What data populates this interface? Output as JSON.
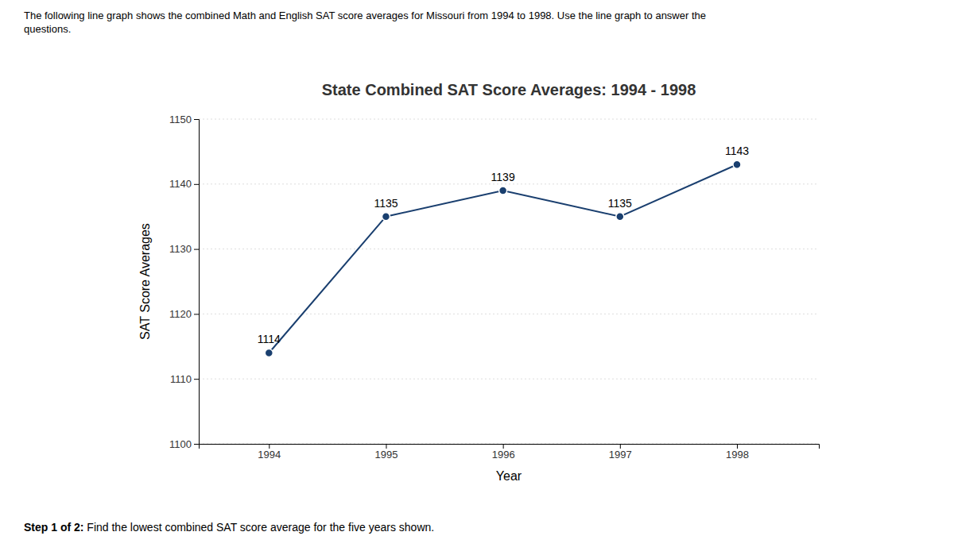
{
  "chart_data": {
    "type": "line",
    "title": "State Combined SAT Score Averages: 1994 - 1998",
    "xlabel": "Year",
    "ylabel": "SAT Score Averages",
    "annotations": [
      "The following line graph shows the combined Math and English SAT score averages for Missouri from 1994 to 1998. Use the line graph to answer the",
      "questions.",
      "Step 1 of 2:",
      " Find the lowest combined SAT score average for the five years shown."
    ],
    "x": [
      1994,
      1995,
      1996,
      1997,
      1998
    ],
    "values": [
      1114,
      1135,
      1139,
      1135,
      1143
    ],
    "color": "#1a3f6f",
    "marker": "circle",
    "xlim": [
      1993.4,
      1998.7
    ],
    "xticks": [
      1994,
      1995,
      1996,
      1997,
      1998
    ],
    "ylim": [
      1100,
      1150
    ],
    "yticks": [
      1100,
      1110,
      1120,
      1130,
      1140,
      1150
    ],
    "grid": true,
    "data_labels": true
  }
}
